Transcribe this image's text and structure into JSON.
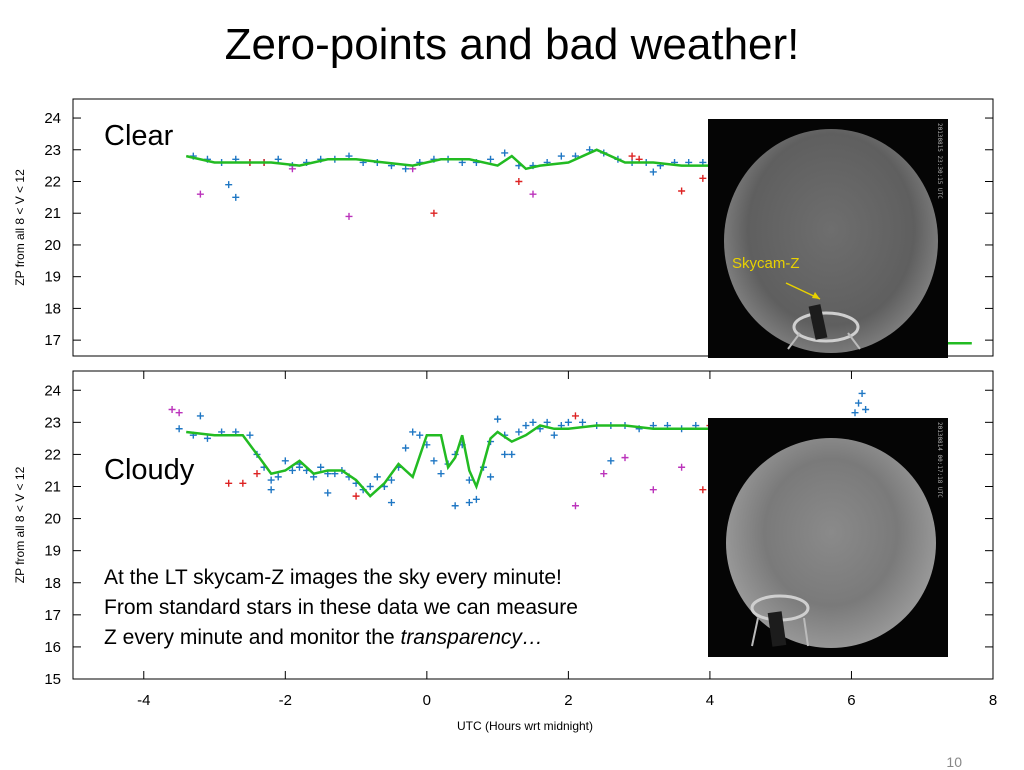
{
  "slide": {
    "title": "Zero-points and bad weather!",
    "clear_label": "Clear",
    "cloudy_label": "Cloudy",
    "note_lines": [
      "At the LT skycam-Z images the sky every minute!",
      "From standard stars in these data we can measure",
      "Z every minute and monitor the "
    ],
    "note_emphasis": "transparency…",
    "photo_label": "Skycam-Z",
    "photo1_timestamp": "20130815 23:30:15 UTC",
    "photo2_timestamp": "20130814 00:17:18 UTC",
    "page_number": "10"
  },
  "colors": {
    "model_line": "#22bb22",
    "blue_points": "#1f77c4",
    "red_points": "#dd2222",
    "magenta_points": "#bb33bb",
    "annotation": "#e8d100"
  },
  "chart_data": [
    {
      "type": "scatter",
      "panel": "top",
      "ylabel": "ZP from all 8 < V < 12",
      "xlabel": "",
      "xlim": [
        -5,
        8
      ],
      "ylim": [
        16.5,
        24.6
      ],
      "yticks": [
        24,
        23,
        22,
        21,
        20,
        19,
        18,
        17
      ],
      "grid": false,
      "series": [
        {
          "kind": "blue-scatter",
          "x": [
            -3.3,
            -3.1,
            -2.9,
            -2.7,
            -2.5,
            -2.3,
            -2.1,
            -1.9,
            -1.7,
            -1.5,
            -1.3,
            -1.1,
            -0.9,
            -0.7,
            -0.5,
            -0.3,
            -0.1,
            0.1,
            0.3,
            0.5,
            0.7,
            0.9,
            1.1,
            1.3,
            1.5,
            1.7,
            1.9,
            2.1,
            2.3,
            2.5,
            2.7,
            2.9,
            3.1,
            3.3,
            3.5,
            3.7,
            3.9,
            4.0,
            -2.8,
            -2.7,
            3.2
          ],
          "y": [
            22.8,
            22.7,
            22.6,
            22.7,
            22.6,
            22.6,
            22.7,
            22.5,
            22.6,
            22.7,
            22.7,
            22.8,
            22.6,
            22.6,
            22.5,
            22.4,
            22.6,
            22.7,
            22.7,
            22.6,
            22.6,
            22.7,
            22.9,
            22.5,
            22.5,
            22.6,
            22.8,
            22.8,
            23.0,
            22.9,
            22.7,
            22.6,
            22.6,
            22.5,
            22.6,
            22.6,
            22.6,
            22.5,
            21.9,
            21.5,
            22.3
          ]
        },
        {
          "kind": "red-scatter",
          "x": [
            -2.5,
            -2.3,
            3.0,
            2.9,
            1.3,
            0.1,
            3.6,
            3.9
          ],
          "y": [
            22.6,
            22.6,
            22.7,
            22.8,
            22.0,
            21.0,
            21.7,
            22.1
          ]
        },
        {
          "kind": "magenta-scatter",
          "x": [
            -3.2,
            -1.1,
            1.5,
            -1.9,
            -0.2
          ],
          "y": [
            21.6,
            20.9,
            21.6,
            22.4,
            22.4
          ]
        },
        {
          "kind": "model-line",
          "x": [
            -3.4,
            -3.0,
            -2.6,
            -2.2,
            -1.8,
            -1.4,
            -1.0,
            -0.6,
            -0.2,
            0.2,
            0.6,
            1.0,
            1.2,
            1.4,
            1.6,
            2.0,
            2.4,
            2.8,
            3.2,
            3.6,
            4.0
          ],
          "y": [
            22.8,
            22.6,
            22.6,
            22.6,
            22.5,
            22.7,
            22.7,
            22.6,
            22.5,
            22.7,
            22.7,
            22.5,
            22.8,
            22.4,
            22.5,
            22.6,
            23.0,
            22.6,
            22.6,
            22.5,
            22.5
          ]
        },
        {
          "kind": "model-line-tail",
          "x": [
            7.2,
            7.7
          ],
          "y": [
            16.9,
            16.9
          ]
        }
      ]
    },
    {
      "type": "scatter",
      "panel": "bottom",
      "ylabel": "ZP from all 8 < V < 12",
      "xlabel": "UTC (Hours wrt midnight)",
      "xlim": [
        -5,
        8
      ],
      "ylim": [
        15,
        24.6
      ],
      "xticks": [
        -4,
        -2,
        0,
        2,
        4,
        6,
        8
      ],
      "yticks": [
        24,
        23,
        22,
        21,
        20,
        19,
        18,
        17,
        16,
        15
      ],
      "grid": false,
      "series": [
        {
          "kind": "blue-scatter",
          "x": [
            -3.5,
            -3.3,
            -3.1,
            -2.9,
            -2.7,
            -2.5,
            -2.4,
            -2.3,
            -2.2,
            -2.1,
            -2.0,
            -1.9,
            -1.8,
            -1.7,
            -1.6,
            -1.5,
            -1.4,
            -1.3,
            -1.2,
            -1.1,
            -1.0,
            -0.9,
            -0.8,
            -0.7,
            -0.6,
            -0.5,
            -0.4,
            -0.3,
            -0.2,
            -0.1,
            0.0,
            0.1,
            0.2,
            0.3,
            0.4,
            0.5,
            0.6,
            0.7,
            0.8,
            0.9,
            1.0,
            1.1,
            1.2,
            1.3,
            1.4,
            1.5,
            1.6,
            1.7,
            1.8,
            1.9,
            2.0,
            2.2,
            2.4,
            2.6,
            2.8,
            3.0,
            3.2,
            3.4,
            3.6,
            3.8,
            4.0,
            6.05,
            6.1,
            6.15,
            6.2,
            -3.2,
            -0.5,
            0.4,
            0.6,
            0.9,
            1.1,
            2.6,
            -2.2,
            -1.8,
            -1.4
          ],
          "y": [
            22.8,
            22.6,
            22.5,
            22.7,
            22.7,
            22.6,
            22.0,
            21.6,
            21.2,
            21.3,
            21.8,
            21.5,
            21.7,
            21.5,
            21.3,
            21.6,
            21.4,
            21.4,
            21.5,
            21.3,
            21.1,
            20.9,
            21.0,
            21.3,
            21.0,
            21.2,
            21.6,
            22.2,
            22.7,
            22.6,
            22.3,
            21.8,
            21.4,
            21.7,
            22.0,
            22.3,
            21.2,
            20.6,
            21.6,
            22.4,
            23.1,
            22.6,
            22.0,
            22.7,
            22.9,
            23.0,
            22.8,
            23.0,
            22.6,
            22.9,
            23.0,
            23.0,
            22.9,
            22.9,
            22.9,
            22.8,
            22.9,
            22.9,
            22.8,
            22.9,
            22.8,
            23.3,
            23.6,
            23.9,
            23.4,
            23.2,
            20.5,
            20.4,
            20.5,
            21.3,
            22.0,
            21.8,
            20.9,
            21.6,
            20.8
          ]
        },
        {
          "kind": "red-scatter",
          "x": [
            -2.8,
            -2.6,
            -2.4,
            -1.0,
            2.1,
            3.9,
            4.0
          ],
          "y": [
            21.1,
            21.1,
            21.4,
            20.7,
            23.2,
            20.9,
            22.9
          ]
        },
        {
          "kind": "magenta-scatter",
          "x": [
            -3.6,
            -3.5,
            2.1,
            2.8,
            3.2,
            3.6,
            2.5
          ],
          "y": [
            23.4,
            23.3,
            20.4,
            21.9,
            20.9,
            21.6,
            21.4
          ]
        },
        {
          "kind": "model-line",
          "x": [
            -3.4,
            -3.0,
            -2.6,
            -2.4,
            -2.2,
            -2.0,
            -1.8,
            -1.6,
            -1.4,
            -1.2,
            -1.0,
            -0.8,
            -0.6,
            -0.4,
            -0.2,
            0.0,
            0.2,
            0.3,
            0.4,
            0.5,
            0.6,
            0.7,
            0.8,
            0.9,
            1.0,
            1.2,
            1.4,
            1.6,
            1.8,
            2.0,
            2.4,
            2.8,
            3.2,
            3.6,
            4.0
          ],
          "y": [
            22.7,
            22.6,
            22.6,
            22.0,
            21.4,
            21.5,
            21.8,
            21.4,
            21.5,
            21.5,
            21.2,
            20.7,
            21.1,
            21.7,
            21.3,
            22.6,
            22.6,
            21.6,
            21.9,
            22.6,
            21.5,
            21.0,
            21.7,
            22.5,
            22.7,
            22.4,
            22.6,
            22.9,
            22.8,
            22.8,
            22.9,
            22.9,
            22.8,
            22.8,
            22.8
          ]
        }
      ]
    }
  ]
}
